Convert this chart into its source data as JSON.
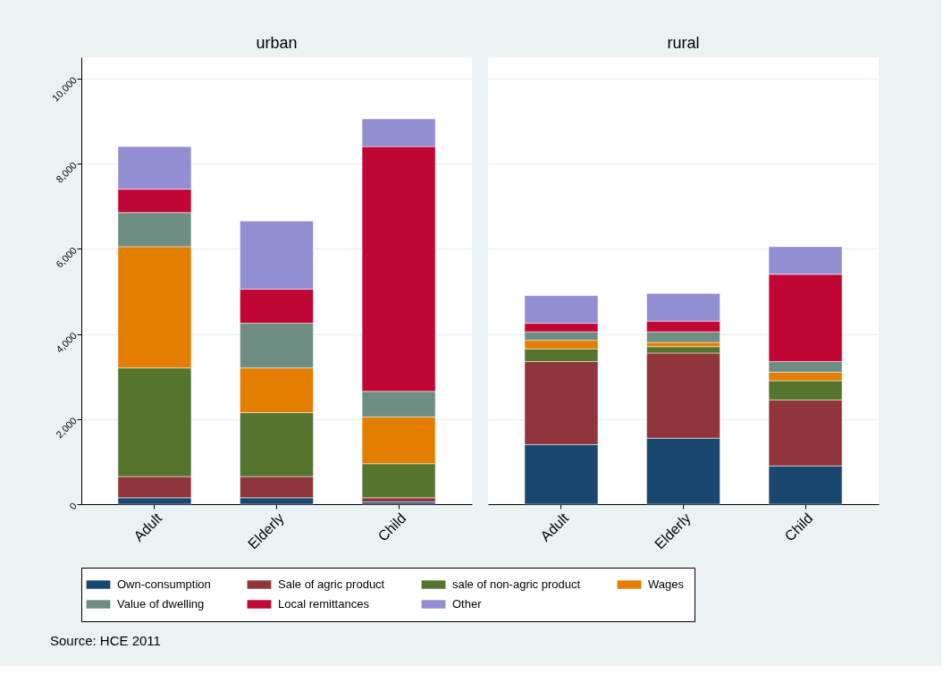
{
  "chart_data": [
    {
      "type": "bar",
      "title": "urban",
      "stacked": true,
      "categories": [
        "Adult",
        "Elderly",
        "Child"
      ],
      "ylim": [
        0,
        10500
      ],
      "yticks": [
        0,
        {
          "value": 2000,
          "label": "2,000"
        },
        {
          "value": 4000,
          "label": "4,000"
        },
        {
          "value": 6000,
          "label": "6,000"
        },
        {
          "value": 8000,
          "label": "8,000"
        },
        {
          "value": 10000,
          "label": "10,000"
        }
      ],
      "grid": "y",
      "legend": "bottom",
      "annotations": [
        "Source: HCE 2011"
      ],
      "series": [
        {
          "name": "Own-consumption",
          "color": "#1a476f",
          "values": [
            150,
            150,
            50
          ]
        },
        {
          "name": "Sale of agric product",
          "color": "#90353b",
          "values": [
            500,
            500,
            100
          ]
        },
        {
          "name": "sale of non-agric product",
          "color": "#55752f",
          "values": [
            2550,
            1500,
            800
          ]
        },
        {
          "name": "Wages",
          "color": "#e37e00",
          "values": [
            2850,
            1050,
            1100
          ]
        },
        {
          "name": "Value of dwelling",
          "color": "#6e8e84",
          "values": [
            800,
            1050,
            600
          ]
        },
        {
          "name": "Local remittances",
          "color": "#c10534",
          "values": [
            550,
            800,
            5750
          ]
        },
        {
          "name": "Other",
          "color": "#938dd2",
          "values": [
            1000,
            1600,
            650
          ]
        }
      ]
    },
    {
      "type": "bar",
      "title": "rural",
      "stacked": true,
      "categories": [
        "Adult",
        "Elderly",
        "Child"
      ],
      "ylim": [
        0,
        10500
      ],
      "yticks": [
        0,
        2000,
        4000,
        6000,
        8000,
        10000
      ],
      "grid": "y",
      "legend": "bottom",
      "tick_labels": "x",
      "series": [
        {
          "name": "Own-consumption",
          "color": "#1a476f",
          "values": [
            1400,
            1550,
            900
          ]
        },
        {
          "name": "Sale of agric product",
          "color": "#90353b",
          "values": [
            1950,
            2000,
            1550
          ]
        },
        {
          "name": "sale of non-agric product",
          "color": "#55752f",
          "values": [
            300,
            150,
            450
          ]
        },
        {
          "name": "Wages",
          "color": "#e37e00",
          "values": [
            200,
            100,
            200
          ]
        },
        {
          "name": "Value of dwelling",
          "color": "#6e8e84",
          "values": [
            200,
            250,
            250
          ]
        },
        {
          "name": "Local remittances",
          "color": "#c10534",
          "values": [
            200,
            250,
            2050
          ]
        },
        {
          "name": "Other",
          "color": "#938dd2",
          "values": [
            650,
            650,
            650
          ]
        }
      ]
    }
  ]
}
